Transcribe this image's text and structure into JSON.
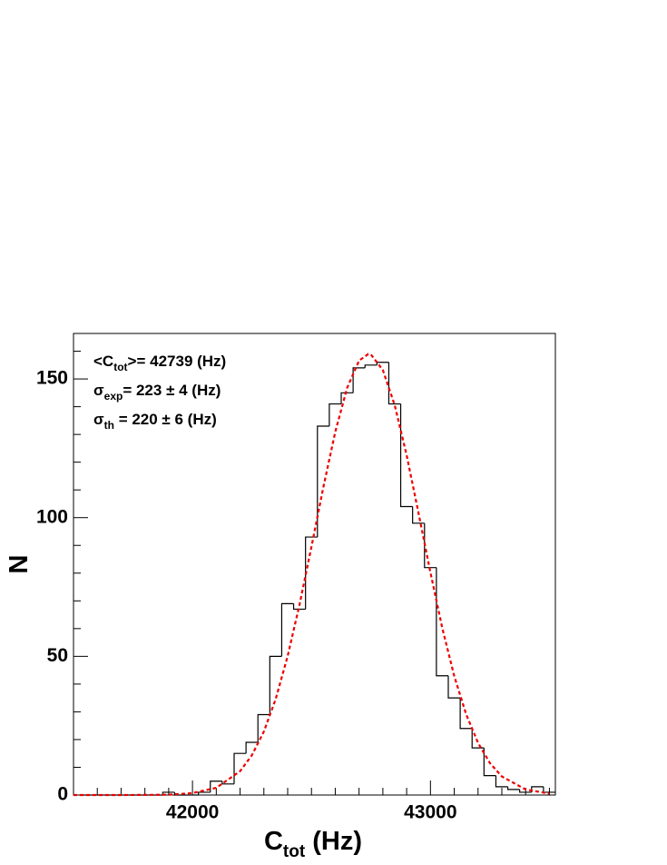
{
  "chart_data": {
    "type": "histogram",
    "x_label": {
      "main": "C",
      "sub": "tot",
      "rest": " (Hz)"
    },
    "y_label": "N",
    "annotations": [
      {
        "main": "<C",
        "sub": "tot",
        "rest": ">= 42739 (Hz)"
      },
      {
        "main": "σ",
        "sub": "exp",
        "rest": "= 223 ± 4 (Hz)"
      },
      {
        "main": "σ",
        "sub": "th",
        "rest": " = 220 ± 6 (Hz)"
      }
    ],
    "bins": [
      41525,
      41575,
      41625,
      41675,
      41725,
      41775,
      41825,
      41875,
      41925,
      41975,
      42025,
      42075,
      42125,
      42175,
      42225,
      42275,
      42325,
      42375,
      42425,
      42475,
      42525,
      42575,
      42625,
      42675,
      42725,
      42775,
      42825,
      42875,
      42925,
      42975,
      43025,
      43075,
      43125,
      43175,
      43225,
      43275,
      43325,
      43375,
      43425,
      43475,
      43525
    ],
    "counts": [
      0,
      0,
      0,
      0,
      0,
      0,
      0,
      1,
      0,
      0,
      1,
      5,
      4,
      15,
      19,
      29,
      50,
      69,
      67,
      93,
      133,
      141,
      145,
      154,
      155,
      156,
      141,
      104,
      98,
      82,
      43,
      35,
      24,
      17,
      7,
      3,
      2,
      1,
      3,
      1
    ],
    "color": "#000000",
    "fit": {
      "color": "#ee0000",
      "dashed": true,
      "x": [
        41500,
        41700,
        41900,
        42000,
        42100,
        42200,
        42250,
        42300,
        42350,
        42400,
        42450,
        42500,
        42550,
        42600,
        42650,
        42700,
        42739,
        42750,
        42800,
        42850,
        42900,
        42950,
        43000,
        43050,
        43100,
        43150,
        43200,
        43250,
        43300,
        43400,
        43500
      ],
      "values": [
        0,
        0,
        0.1,
        0.7,
        2.6,
        8.6,
        14.4,
        22.9,
        34.7,
        50.1,
        68.7,
        89.5,
        111.0,
        130.9,
        146.8,
        156.6,
        159,
        158.8,
        153.2,
        140.5,
        122.5,
        101.6,
        80.2,
        60.1,
        42.9,
        29.1,
        18.8,
        11.5,
        6.7,
        2.0,
        0.5
      ]
    },
    "xlim": [
      41500,
      43525
    ],
    "ylim": [
      0,
      166.4
    ],
    "xticks": [
      42000,
      43000
    ],
    "yticks": [
      0,
      50,
      100,
      150
    ],
    "x_minor_ticks": [
      41600,
      41700,
      41800,
      41900,
      42100,
      42200,
      42300,
      42400,
      42500,
      42600,
      42700,
      42800,
      42900,
      43100,
      43200,
      43300,
      43400,
      43500
    ],
    "y_minor_ticks": [
      10,
      20,
      30,
      40,
      60,
      70,
      80,
      90,
      110,
      120,
      130,
      140,
      160
    ]
  }
}
